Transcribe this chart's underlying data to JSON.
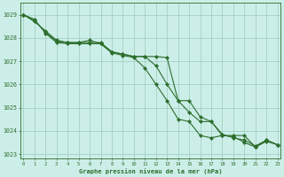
{
  "bg_color": "#cceee8",
  "grid_color": "#99ccbb",
  "line_color": "#2d6e2d",
  "x_min": -0.3,
  "x_max": 23.3,
  "y_min": 1022.8,
  "y_max": 1029.5,
  "series1": [
    1029.0,
    1028.7,
    1028.3,
    1027.9,
    1027.8,
    1027.8,
    1027.9,
    1027.75,
    1027.4,
    1027.3,
    1027.2,
    1027.2,
    1026.8,
    1026.0,
    1025.3,
    1025.3,
    1024.6,
    1024.4,
    1023.8,
    1023.8,
    1023.8,
    1023.3,
    1023.55,
    1023.4
  ],
  "series2": [
    1029.0,
    1028.75,
    1028.25,
    1027.85,
    1027.8,
    1027.8,
    1027.8,
    1027.8,
    1027.4,
    1027.3,
    1027.2,
    1027.2,
    1027.2,
    1027.15,
    1025.3,
    1024.8,
    1024.4,
    1024.4,
    1023.85,
    1023.7,
    1023.6,
    1023.35,
    1023.6,
    1023.4
  ],
  "series3": [
    1029.0,
    1028.8,
    1028.2,
    1027.8,
    1027.75,
    1027.75,
    1027.75,
    1027.75,
    1027.35,
    1027.25,
    1027.15,
    1026.7,
    1026.0,
    1025.3,
    1024.5,
    1024.4,
    1023.8,
    1023.7,
    1023.8,
    1023.75,
    1023.5,
    1023.3,
    1023.6,
    1023.4
  ],
  "xlabel": "Graphe pression niveau de la mer (hPa)",
  "yticks": [
    1023,
    1024,
    1025,
    1026,
    1027,
    1028,
    1029
  ],
  "xticks": [
    0,
    1,
    2,
    3,
    4,
    5,
    6,
    7,
    8,
    9,
    10,
    11,
    12,
    13,
    14,
    15,
    16,
    17,
    18,
    19,
    20,
    21,
    22,
    23
  ]
}
